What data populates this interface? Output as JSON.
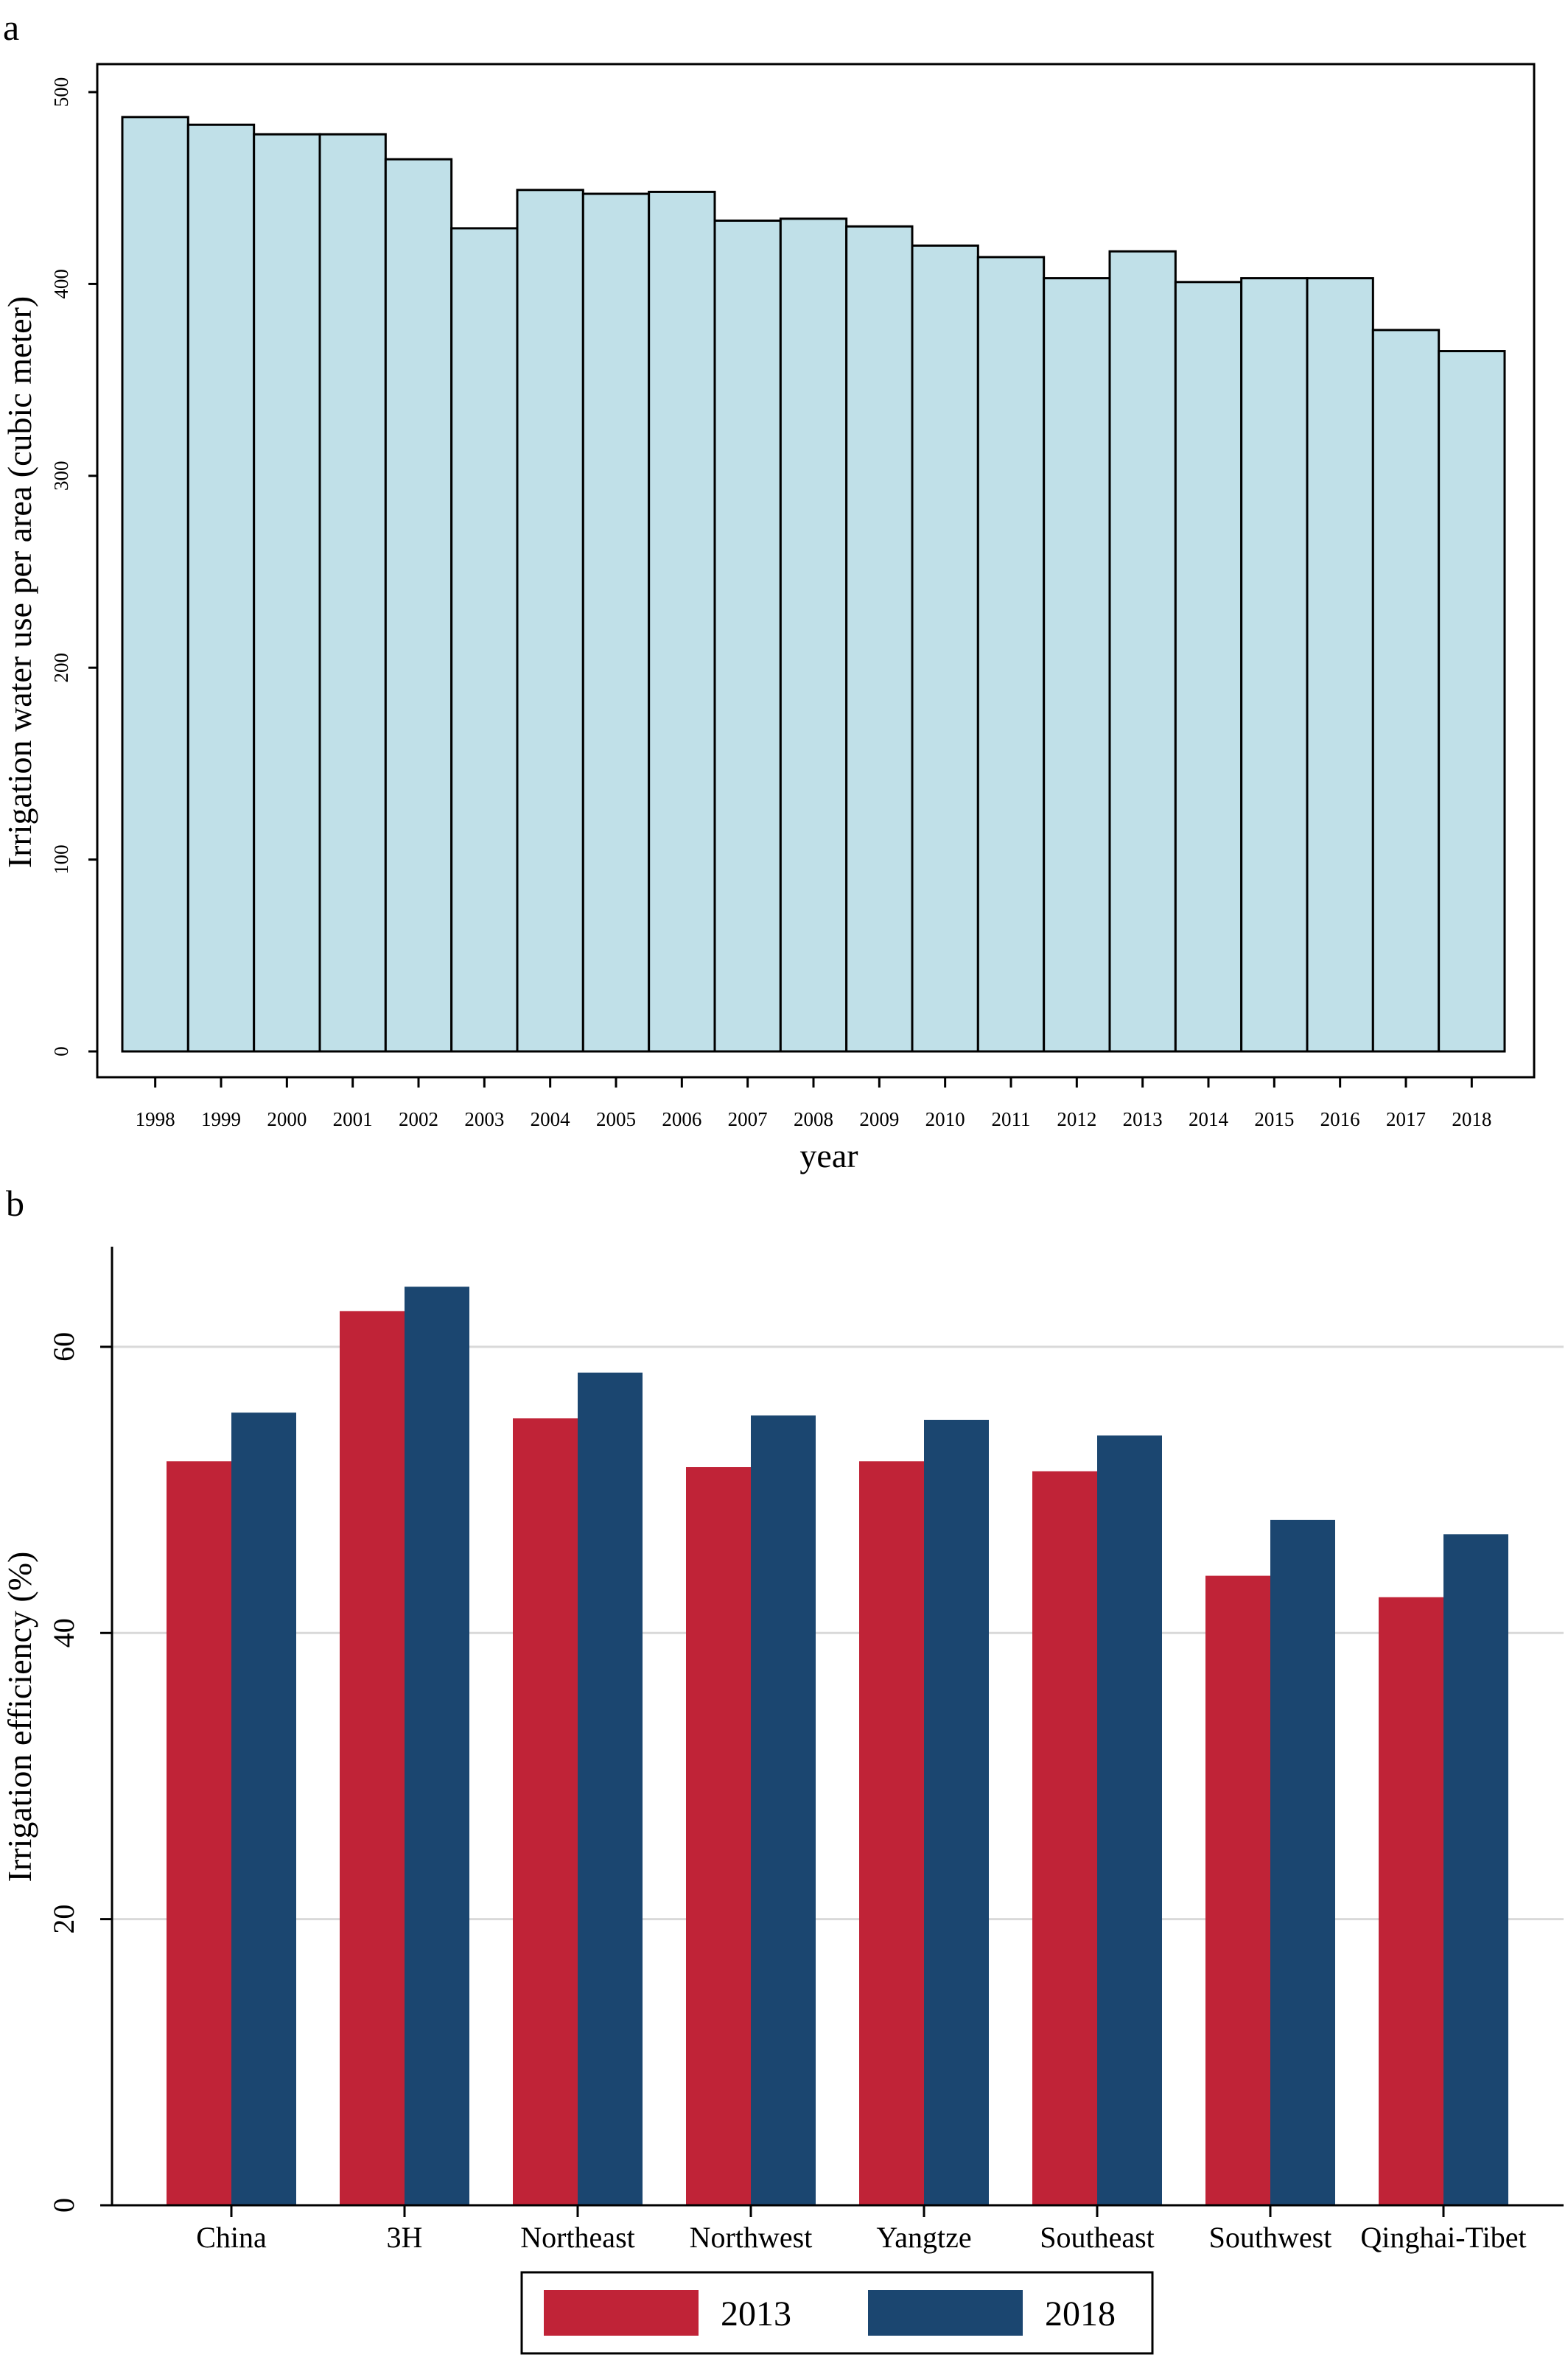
{
  "panel_labels": [
    "a",
    "b"
  ],
  "colors": {
    "bar_a_fill": "#c0e0e8",
    "bar_a_stroke": "#000000",
    "series_2013": "#c02337",
    "series_2018": "#1b4670",
    "gridline": "#d9d9d9"
  },
  "chart_data": [
    {
      "type": "bar",
      "panel": "a",
      "categories": [
        "1998",
        "1999",
        "2000",
        "2001",
        "2002",
        "2003",
        "2004",
        "2005",
        "2006",
        "2007",
        "2008",
        "2009",
        "2010",
        "2011",
        "2012",
        "2013",
        "2014",
        "2015",
        "2016",
        "2017",
        "2018"
      ],
      "values": [
        487,
        483,
        478,
        478,
        465,
        429,
        449,
        447,
        448,
        433,
        434,
        430,
        420,
        414,
        403,
        417,
        401,
        403,
        403,
        376,
        365
      ],
      "xlabel": "year",
      "ylabel": "Irrigation water use per area (cubic meter)",
      "ylim": [
        0,
        500
      ],
      "yticks": [
        0,
        100,
        200,
        300,
        400,
        500
      ],
      "grid": false
    },
    {
      "type": "bar",
      "panel": "b",
      "categories": [
        "China",
        "3H",
        "Northeast",
        "Northwest",
        "Yangtze",
        "Southeast",
        "Southwest",
        "Qinghai-Tibet"
      ],
      "series": [
        {
          "name": "2013",
          "values": [
            52.0,
            62.5,
            55.0,
            51.6,
            52.0,
            51.3,
            44.0,
            42.5
          ]
        },
        {
          "name": "2018",
          "values": [
            55.4,
            64.2,
            58.2,
            55.2,
            54.9,
            53.8,
            47.9,
            46.9
          ]
        }
      ],
      "xlabel": "",
      "ylabel": "Irrigation efficiency (%)",
      "ylim": [
        0,
        67
      ],
      "yticks": [
        0,
        20,
        40,
        60
      ],
      "grid": true,
      "legend_position": "bottom"
    }
  ]
}
